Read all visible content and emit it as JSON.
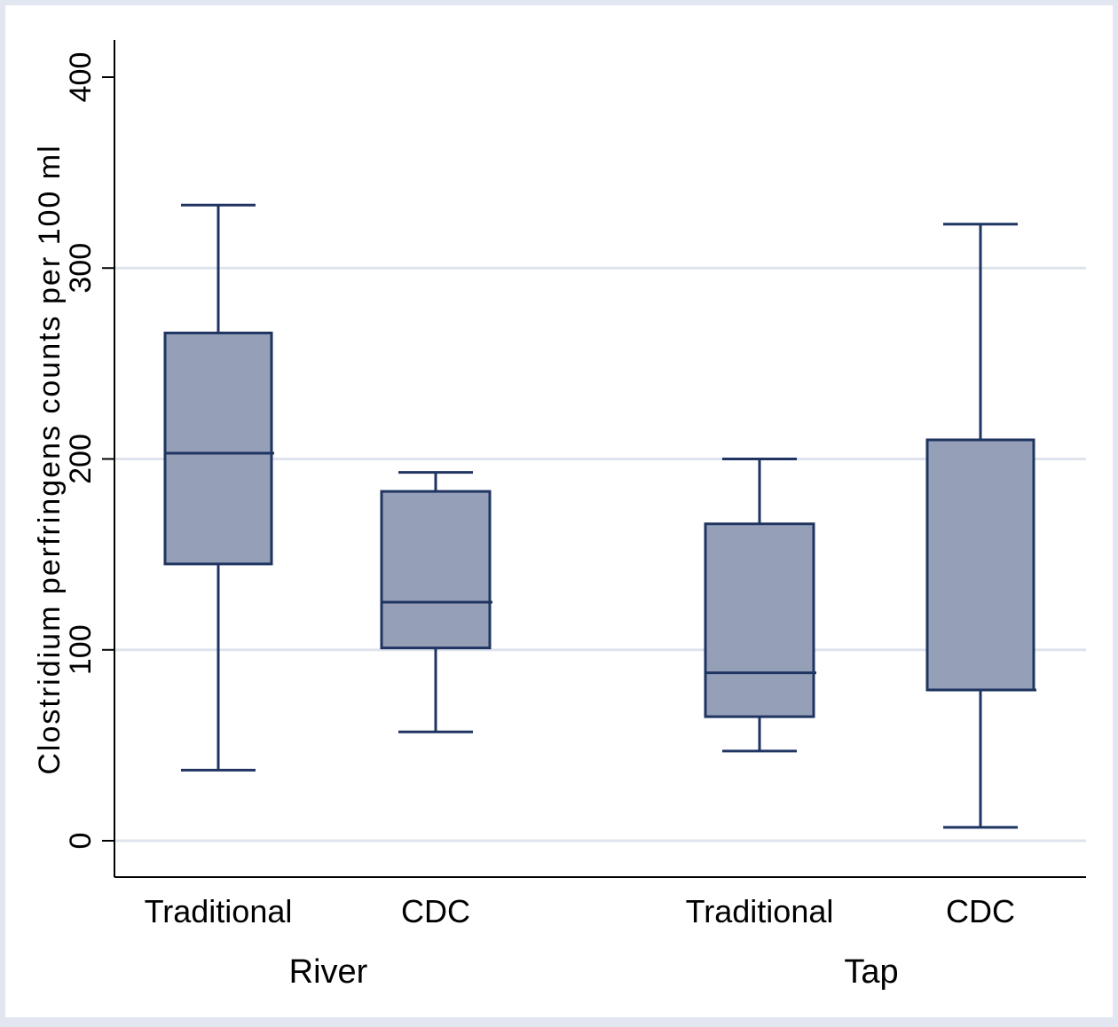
{
  "chart_data": {
    "type": "box",
    "title": "",
    "ylabel": "Clostridium perfringens counts per 100 ml",
    "xlabel": "",
    "ylim": [
      -19,
      420
    ],
    "yticks": [
      0,
      100,
      200,
      300,
      400
    ],
    "grid": true,
    "colors": {
      "page_background": "#e1e6f0",
      "plot_background": "#ffffff",
      "gridline": "#dfe3ed",
      "box_fill": "#95a0b8",
      "box_stroke": "#1f3461"
    },
    "groups": [
      {
        "label": "River",
        "categories": [
          "Traditional",
          "CDC"
        ]
      },
      {
        "label": "Tap",
        "categories": [
          "Traditional",
          "CDC"
        ]
      }
    ],
    "boxes": [
      {
        "group": "River",
        "category": "Traditional",
        "min": 37,
        "q1": 145,
        "median": 203,
        "q3": 266,
        "max": 333
      },
      {
        "group": "River",
        "category": "CDC",
        "min": 57,
        "q1": 101,
        "median": 125,
        "q3": 183,
        "max": 193
      },
      {
        "group": "Tap",
        "category": "Traditional",
        "min": 47,
        "q1": 65,
        "median": 88,
        "q3": 166,
        "max": 200
      },
      {
        "group": "Tap",
        "category": "CDC",
        "min": 7,
        "q1": 79,
        "median": 79,
        "q3": 210,
        "max": 323
      }
    ]
  }
}
